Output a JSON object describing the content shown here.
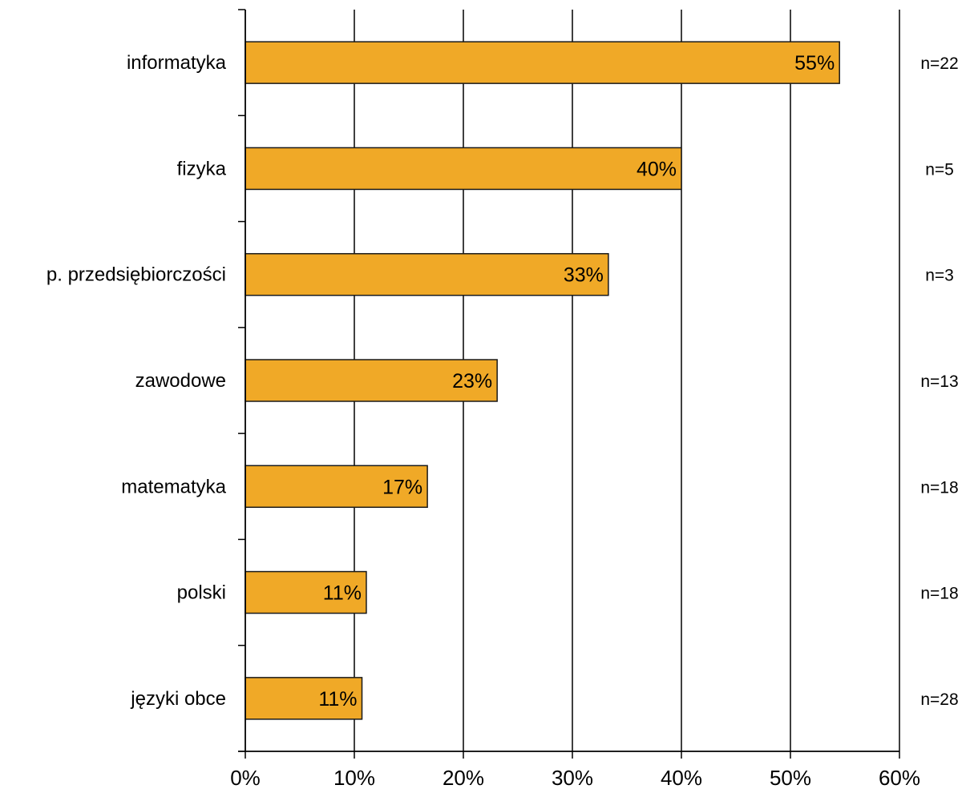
{
  "chart_data": {
    "type": "bar",
    "orientation": "horizontal",
    "categories": [
      "informatyka",
      "fizyka",
      "p. przedsiębiorczości",
      "zawodowe",
      "matematyka",
      "polski",
      "języki obce"
    ],
    "values": [
      54.5,
      40,
      33.3,
      23.1,
      16.7,
      11.1,
      10.7
    ],
    "value_labels": [
      "55%",
      "40%",
      "33%",
      "23%",
      "17%",
      "11%",
      "11%"
    ],
    "sample_sizes": [
      "n=22",
      "n=5",
      "n=3",
      "n=13",
      "n=18",
      "n=18",
      "n=28"
    ],
    "xlim": [
      0,
      60
    ],
    "x_ticks": [
      0,
      10,
      20,
      30,
      40,
      50,
      60
    ],
    "x_tick_labels": [
      "0%",
      "10%",
      "20%",
      "30%",
      "40%",
      "50%",
      "60%"
    ],
    "grid": "vertical",
    "bar_color": "#f0a927",
    "bar_edge_color": "#1a1a1a",
    "axis_color": "#000000"
  }
}
